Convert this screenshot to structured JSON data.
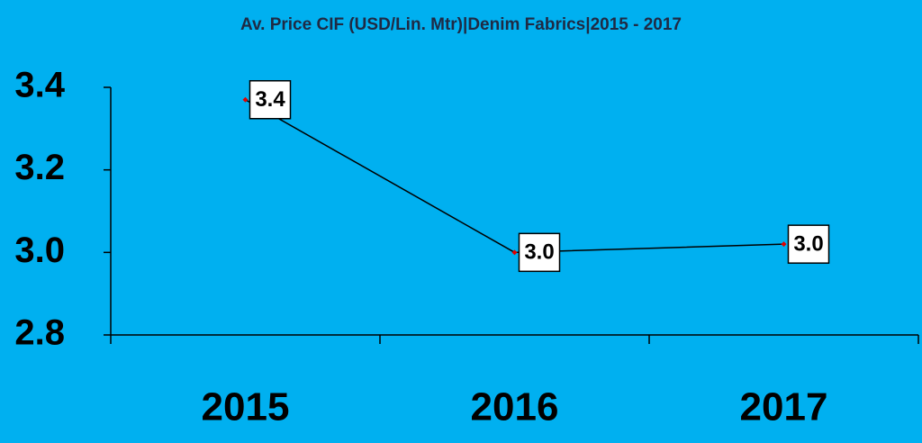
{
  "chart_data": {
    "type": "line",
    "title": "Av. Price CIF (USD/Lin. Mtr)|Denim Fabrics|2015 - 2017",
    "categories": [
      "2015",
      "2016",
      "2017"
    ],
    "values": [
      3.37,
      3.0,
      3.02
    ],
    "value_labels": [
      "3.4",
      "3.0",
      "3.0"
    ],
    "color": "#000000",
    "marker_color": "#e00000",
    "background": "#00b0f0",
    "ylim": [
      2.8,
      3.4
    ],
    "yticks": [
      2.8,
      {
        "value": 3,
        "label": "3.0"
      },
      3.2,
      3.4
    ],
    "grid": false
  }
}
